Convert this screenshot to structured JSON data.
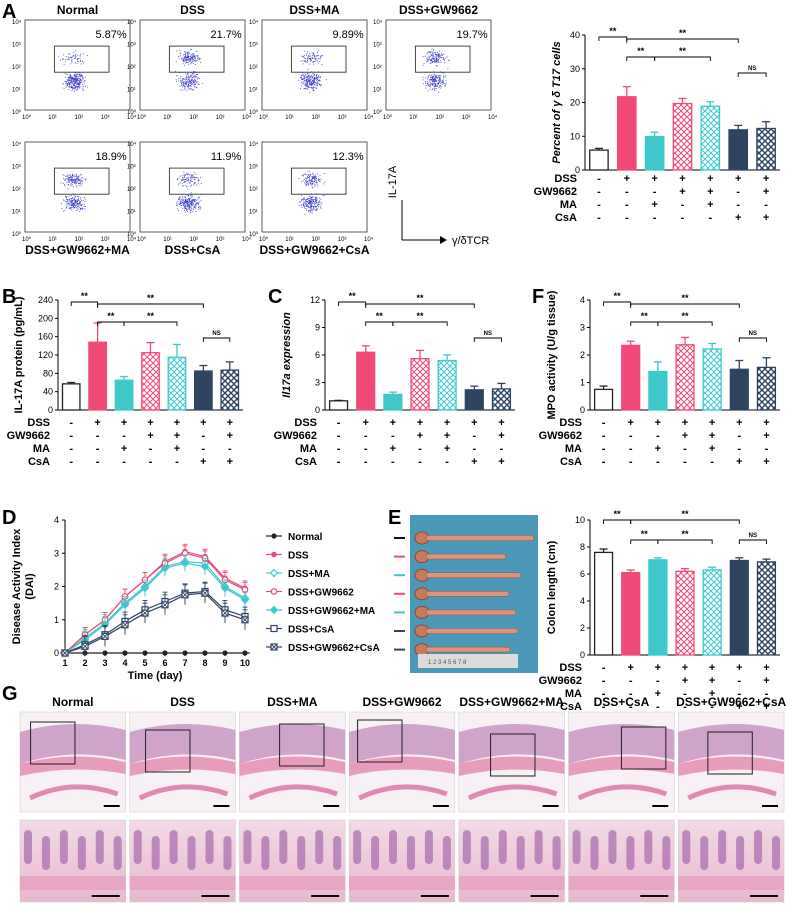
{
  "panel_letters": {
    "A": "A",
    "B": "B",
    "C": "C",
    "D": "D",
    "E": "E",
    "F": "F",
    "G": "G"
  },
  "colors": {
    "normal": "#222222",
    "dss": "#f04a78",
    "ma": "#3ec8cc",
    "gw": "#f04a78",
    "gwma": "#3ec8cc",
    "csa": "#2f4460",
    "gwcsa": "#2f4460",
    "dots": "#3a3ac8"
  },
  "flow": {
    "panels": [
      {
        "title": "Normal",
        "pct": "5.87%"
      },
      {
        "title": "DSS",
        "pct": "21.7%"
      },
      {
        "title": "DSS+MA",
        "pct": "9.89%"
      },
      {
        "title": "DSS+GW9662",
        "pct": "19.7%"
      },
      {
        "title": "DSS+GW9662+MA",
        "pct": "18.9%"
      },
      {
        "title": "DSS+CsA",
        "pct": "11.9%"
      },
      {
        "title": "DSS+GW9662+CsA",
        "pct": "12.3%"
      }
    ],
    "x_ticks": [
      "10⁰",
      "10¹",
      "10²",
      "10³",
      "10⁴"
    ],
    "y_ticks": [
      "10⁴",
      "10³",
      "10²",
      "10¹",
      "10⁰"
    ],
    "y_axis": "IL-17A",
    "x_axis": "γ/δTCR"
  },
  "treatment_table": {
    "rows": [
      "DSS",
      "GW9662",
      "MA",
      "CsA"
    ],
    "cols": [
      [
        "-",
        "-",
        "-",
        "-"
      ],
      [
        "+",
        "-",
        "-",
        "-"
      ],
      [
        "+",
        "-",
        "+",
        "-"
      ],
      [
        "+",
        "+",
        "-",
        "-"
      ],
      [
        "+",
        "+",
        "+",
        "-"
      ],
      [
        "+",
        "-",
        "-",
        "+"
      ],
      [
        "+",
        "+",
        "-",
        "+"
      ]
    ]
  },
  "sig": {
    "star": "**",
    "ns": "NS"
  },
  "chart_data": [
    {
      "id": "A",
      "type": "bar",
      "title": "",
      "ylabel": "Percent of γ δ T17 cells",
      "ylim": [
        0,
        40
      ],
      "ticks": [
        0,
        10,
        20,
        30,
        40
      ],
      "categories": [
        "Normal",
        "DSS",
        "DSS+MA",
        "DSS+GW9662",
        "DSS+GW9662+MA",
        "DSS+CsA",
        "DSS+GW9662+CsA"
      ],
      "values": [
        5.9,
        21.7,
        9.9,
        19.7,
        18.9,
        11.9,
        12.3
      ],
      "errors": [
        0.5,
        3,
        1.3,
        1.5,
        1.3,
        1.3,
        2
      ]
    },
    {
      "id": "B",
      "type": "bar",
      "ylabel": "IL-17A protein (pg/mL)",
      "ylim": [
        0,
        240
      ],
      "ticks": [
        0,
        40,
        80,
        120,
        160,
        200,
        240
      ],
      "categories": [
        "Normal",
        "DSS",
        "DSS+MA",
        "DSS+GW9662",
        "DSS+GW9662+MA",
        "DSS+CsA",
        "DSS+GW9662+CsA"
      ],
      "values": [
        57,
        148,
        65,
        125,
        115,
        85,
        87
      ],
      "errors": [
        3,
        42,
        8,
        22,
        28,
        12,
        18
      ]
    },
    {
      "id": "C",
      "type": "bar",
      "ylabel": "Il17a expression",
      "ylim": [
        0,
        12
      ],
      "ticks": [
        0,
        3,
        6,
        9,
        12
      ],
      "categories": [
        "Normal",
        "DSS",
        "DSS+MA",
        "DSS+GW9662",
        "DSS+GW9662+MA",
        "DSS+CsA",
        "DSS+GW9662+CsA"
      ],
      "values": [
        1.0,
        6.3,
        1.7,
        5.6,
        5.4,
        2.2,
        2.3
      ],
      "errors": [
        0.05,
        0.7,
        0.25,
        0.9,
        0.6,
        0.4,
        0.6
      ]
    },
    {
      "id": "F",
      "type": "bar",
      "ylabel": "MPO activity (U/g tissue)",
      "ylim": [
        0,
        4
      ],
      "ticks": [
        0,
        1,
        2,
        3,
        4
      ],
      "categories": [
        "Normal",
        "DSS",
        "DSS+MA",
        "DSS+GW9662",
        "DSS+GW9662+MA",
        "DSS+CsA",
        "DSS+GW9662+CsA"
      ],
      "values": [
        0.75,
        2.35,
        1.4,
        2.37,
        2.22,
        1.48,
        1.55
      ],
      "errors": [
        0.12,
        0.15,
        0.35,
        0.27,
        0.2,
        0.32,
        0.35
      ]
    },
    {
      "id": "E2",
      "type": "bar",
      "ylabel": "Colon length (cm)",
      "ylim": [
        0,
        10
      ],
      "ticks": [
        0,
        2,
        4,
        6,
        8,
        10
      ],
      "categories": [
        "Normal",
        "DSS",
        "DSS+MA",
        "DSS+GW9662",
        "DSS+GW9662+MA",
        "DSS+CsA",
        "DSS+GW9662+CsA"
      ],
      "values": [
        7.6,
        6.1,
        7.05,
        6.2,
        6.3,
        7.0,
        6.9
      ],
      "errors": [
        0.25,
        0.2,
        0.15,
        0.2,
        0.2,
        0.2,
        0.2
      ]
    },
    {
      "id": "D",
      "type": "line",
      "xlabel": "Time (day)",
      "ylabel": "Disease Activity Index (DAI)",
      "xlim": [
        1,
        10
      ],
      "ylim": [
        0,
        4
      ],
      "x": [
        1,
        2,
        3,
        4,
        5,
        6,
        7,
        8,
        9,
        10
      ],
      "xticks": [
        1,
        2,
        3,
        4,
        5,
        6,
        7,
        8,
        9,
        10
      ],
      "yticks": [
        0,
        1,
        2,
        3,
        4
      ],
      "series": [
        {
          "name": "Normal",
          "marker": "filled-circle",
          "values": [
            0,
            0,
            0,
            0,
            0,
            0,
            0,
            0,
            0,
            0
          ]
        },
        {
          "name": "DSS",
          "marker": "filled-circle-pink",
          "values": [
            0,
            0.55,
            1.0,
            1.7,
            2.2,
            2.75,
            3.05,
            2.9,
            2.25,
            1.95
          ]
        },
        {
          "name": "DSS+MA",
          "marker": "diamond-open",
          "values": [
            0,
            0.45,
            0.9,
            1.5,
            2.0,
            2.6,
            2.75,
            2.7,
            2.0,
            1.65
          ]
        },
        {
          "name": "DSS+GW9662",
          "marker": "circle-open-pink",
          "values": [
            0,
            0.55,
            1.0,
            1.7,
            2.2,
            2.7,
            3.0,
            2.85,
            2.2,
            1.9
          ]
        },
        {
          "name": "DSS+GW9662+MA",
          "marker": "diamond-filled-cyan",
          "values": [
            0,
            0.4,
            0.85,
            1.45,
            1.95,
            2.55,
            2.7,
            2.6,
            1.95,
            1.6
          ]
        },
        {
          "name": "DSS+CsA",
          "marker": "square-open",
          "values": [
            0,
            0.25,
            0.55,
            0.95,
            1.3,
            1.55,
            1.8,
            1.85,
            1.3,
            1.1
          ]
        },
        {
          "name": "DSS+GW9662+CsA",
          "marker": "square-x",
          "values": [
            0,
            0.2,
            0.5,
            0.85,
            1.2,
            1.45,
            1.75,
            1.8,
            1.2,
            1.0
          ]
        }
      ]
    }
  ],
  "colon_photo": {
    "ruler": "1  2  3  4  5  6  7  8"
  },
  "histology": {
    "titles": [
      "Normal",
      "DSS",
      "DSS+MA",
      "DSS+GW9662",
      "DSS+GW9662+MA",
      "DSS+CsA",
      "DSS+GW9662+CsA"
    ]
  }
}
